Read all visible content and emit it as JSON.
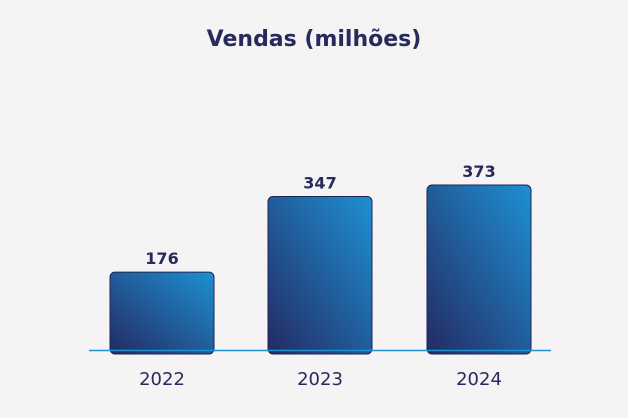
{
  "chart_data": {
    "type": "bar",
    "title": "Vendas (milhões)",
    "categories": [
      "2022",
      "2023",
      "2024"
    ],
    "values": [
      176,
      347,
      373
    ],
    "value_labels": [
      "176",
      "347",
      "373"
    ],
    "xlabel": "",
    "ylabel": "",
    "ylim": [
      0,
      450
    ],
    "grid": false,
    "legend": "none"
  },
  "colors": {
    "background": "#f5f3f4",
    "text": "#262a5c",
    "bar_gradient_top": "#1e90d2",
    "bar_gradient_bottom": "#232a63",
    "bar_edge": "#1b2453",
    "axis_line": "#1e90d2"
  }
}
